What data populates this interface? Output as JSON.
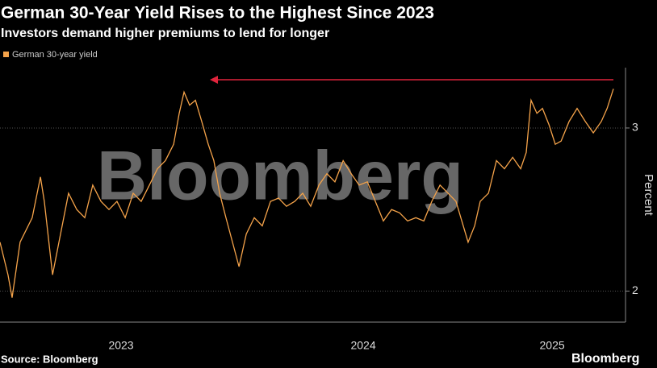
{
  "chart_data": {
    "type": "line",
    "title": "German 30-Year Yield Rises to the Highest Since 2023",
    "subtitle": "Investors demand higher premiums to lend for longer",
    "ylabel": "Percent",
    "watermark": "Bloomberg",
    "source": "Source: Bloomberg",
    "logo": "Bloomberg",
    "xlim": [
      2023.0,
      2025.583
    ],
    "xticks": [
      {
        "value": 2023.5,
        "label": "2023"
      },
      {
        "value": 2024.5,
        "label": "2024"
      },
      {
        "value": 2025.28,
        "label": "2025"
      }
    ],
    "ylim": [
      1.81,
      3.37
    ],
    "yticks": [
      2,
      3
    ],
    "grid": true,
    "x": [
      2023.0,
      2023.033,
      2023.05,
      2023.083,
      2023.133,
      2023.167,
      2023.183,
      2023.217,
      2023.25,
      2023.283,
      2023.317,
      2023.35,
      2023.383,
      2023.417,
      2023.45,
      2023.483,
      2023.517,
      2023.55,
      2023.583,
      2023.617,
      2023.65,
      2023.683,
      2023.717,
      2023.74,
      2023.76,
      2023.783,
      2023.807,
      2023.833,
      2023.86,
      2023.883,
      2023.907,
      2023.933,
      2023.96,
      2023.987,
      2024.017,
      2024.05,
      2024.083,
      2024.117,
      2024.15,
      2024.183,
      2024.217,
      2024.25,
      2024.283,
      2024.317,
      2024.35,
      2024.383,
      2024.417,
      2024.45,
      2024.483,
      2024.517,
      2024.55,
      2024.583,
      2024.617,
      2024.65,
      2024.683,
      2024.717,
      2024.75,
      2024.783,
      2024.817,
      2024.85,
      2024.883,
      2024.907,
      2024.933,
      2024.96,
      2024.983,
      2025.017,
      2025.05,
      2025.083,
      2025.117,
      2025.15,
      2025.173,
      2025.193,
      2025.217,
      2025.24,
      2025.267,
      2025.293,
      2025.317,
      2025.35,
      2025.383,
      2025.417,
      2025.45,
      2025.483,
      2025.507,
      2025.533
    ],
    "series": [
      {
        "name": "German 30-year yield",
        "color": "#f5a34a",
        "values": [
          2.3,
          2.1,
          1.96,
          2.3,
          2.45,
          2.7,
          2.55,
          2.1,
          2.35,
          2.6,
          2.5,
          2.45,
          2.65,
          2.55,
          2.5,
          2.55,
          2.45,
          2.6,
          2.55,
          2.65,
          2.75,
          2.8,
          2.9,
          3.09,
          3.22,
          3.14,
          3.17,
          3.04,
          2.9,
          2.8,
          2.6,
          2.45,
          2.3,
          2.15,
          2.35,
          2.45,
          2.4,
          2.55,
          2.57,
          2.52,
          2.55,
          2.6,
          2.52,
          2.65,
          2.72,
          2.67,
          2.8,
          2.72,
          2.65,
          2.67,
          2.55,
          2.43,
          2.5,
          2.48,
          2.43,
          2.45,
          2.43,
          2.55,
          2.65,
          2.6,
          2.55,
          2.43,
          2.3,
          2.4,
          2.55,
          2.6,
          2.8,
          2.75,
          2.82,
          2.75,
          2.85,
          3.17,
          3.09,
          3.12,
          3.02,
          2.9,
          2.92,
          3.04,
          3.12,
          3.04,
          2.97,
          3.04,
          3.12,
          3.24
        ]
      }
    ]
  }
}
